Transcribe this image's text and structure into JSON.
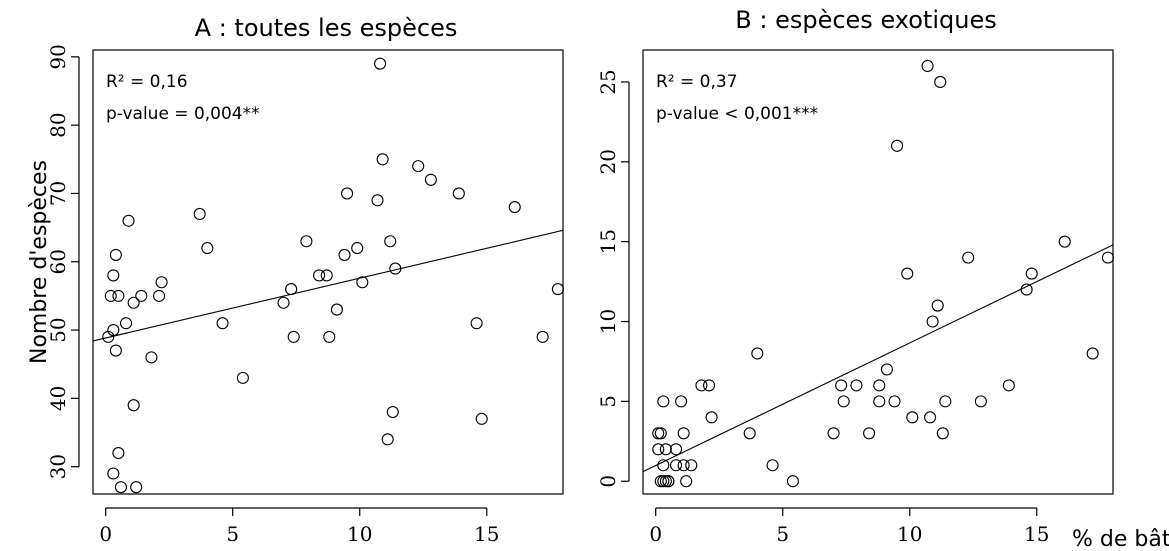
{
  "chart_data": [
    {
      "type": "scatter",
      "title": "A : toutes les espèces",
      "ylabel": "Nombre d'espèces",
      "xlabel": "",
      "stats": [
        "R² = 0,16",
        "p-value = 0,004**"
      ],
      "xlim": [
        -0.5,
        18
      ],
      "ylim": [
        26,
        91
      ],
      "xticks": [
        0,
        5,
        10,
        15
      ],
      "yticks": [
        30,
        40,
        50,
        60,
        70,
        80,
        90
      ],
      "x": [
        0.1,
        0.2,
        0.3,
        0.3,
        0.3,
        0.4,
        0.4,
        0.5,
        0.5,
        0.6,
        0.8,
        0.9,
        1.1,
        1.1,
        1.2,
        1.4,
        1.8,
        2.1,
        2.2,
        3.7,
        4.0,
        4.6,
        5.4,
        7.0,
        7.3,
        7.4,
        7.9,
        8.4,
        8.7,
        8.8,
        9.1,
        9.4,
        9.5,
        9.9,
        10.1,
        10.7,
        10.8,
        10.9,
        11.1,
        11.2,
        11.3,
        11.4,
        12.3,
        12.8,
        13.9,
        14.6,
        14.8,
        16.1,
        17.2,
        17.8
      ],
      "y": [
        49,
        55,
        58,
        29,
        50,
        47,
        61,
        55,
        32,
        27,
        51,
        66,
        54,
        39,
        27,
        55,
        46,
        55,
        57,
        67,
        62,
        51,
        43,
        54,
        56,
        49,
        63,
        58,
        58,
        49,
        53,
        61,
        70,
        62,
        57,
        69,
        89,
        75,
        34,
        63,
        38,
        59,
        74,
        72,
        70,
        51,
        37,
        68,
        49,
        56
      ],
      "fit": {
        "x": [
          -0.5,
          18
        ],
        "y": [
          48.4,
          64.6
        ]
      }
    },
    {
      "type": "scatter",
      "title": "B : espèces exotiques",
      "ylabel": "",
      "xlabel": "% de bâti",
      "stats": [
        "R² = 0,37",
        "p-value < 0,001***"
      ],
      "xlim": [
        -0.5,
        18
      ],
      "ylim": [
        -0.8,
        27
      ],
      "xticks": [
        0,
        5,
        10,
        15
      ],
      "yticks": [
        0,
        5,
        10,
        15,
        20,
        25
      ],
      "x": [
        0.1,
        0.1,
        0.2,
        0.2,
        0.3,
        0.3,
        0.3,
        0.4,
        0.4,
        0.5,
        0.5,
        0.8,
        0.8,
        1.0,
        1.1,
        1.1,
        1.2,
        1.4,
        1.8,
        2.1,
        2.2,
        3.7,
        4.0,
        4.6,
        5.4,
        7.0,
        7.3,
        7.4,
        7.9,
        8.4,
        8.8,
        8.8,
        9.1,
        9.4,
        9.5,
        9.9,
        10.1,
        10.7,
        10.8,
        10.9,
        11.1,
        11.2,
        11.3,
        11.4,
        12.3,
        12.8,
        13.9,
        14.6,
        14.8,
        16.1,
        17.2,
        17.8
      ],
      "y": [
        3,
        2,
        3,
        0,
        5,
        0,
        1,
        0,
        2,
        0,
        0,
        2,
        1,
        5,
        3,
        1,
        0,
        1,
        6,
        6,
        4,
        3,
        8,
        1,
        0,
        3,
        6,
        5,
        6,
        3,
        6,
        5,
        7,
        5,
        21,
        13,
        4,
        26,
        4,
        10,
        11,
        25,
        3,
        5,
        14,
        5,
        6,
        12,
        13,
        15,
        8,
        14
      ],
      "fit": {
        "x": [
          -0.5,
          18
        ],
        "y": [
          0.6,
          14.8
        ]
      }
    }
  ]
}
